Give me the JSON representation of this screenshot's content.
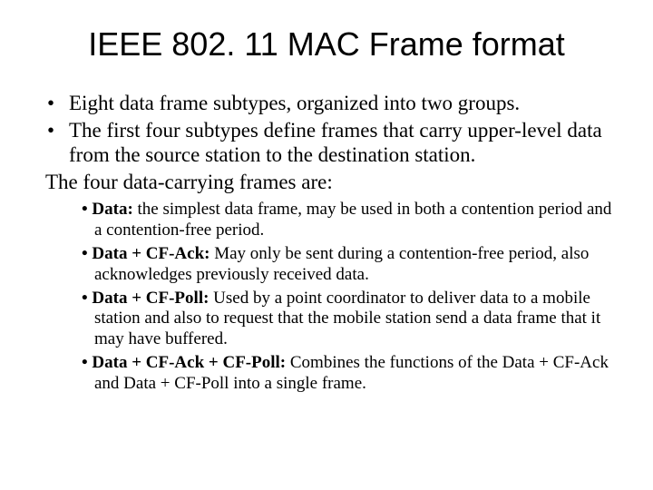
{
  "colors": {
    "background": "#ffffff",
    "text": "#000000"
  },
  "typography": {
    "title_font": "Arial",
    "body_font": "Times New Roman",
    "title_size_pt": 36,
    "outer_size_pt": 23,
    "inner_size_pt": 19
  },
  "title": "IEEE 802. 11 MAC Frame format",
  "outer": {
    "b1": "Eight data frame subtypes, organized into two groups.",
    "b2": "The first four subtypes define frames that carry upper-level data from the source station to the destination station.",
    "b3": "The four data-carrying frames are:"
  },
  "inner": {
    "i1_label": "• Data: ",
    "i1_text": "the simplest data frame, may be used in both a contention period and a contention-free period.",
    "i2_label": "• Data + CF-Ack: ",
    "i2_text": "May only be sent during a contention-free period, also acknowledges previously received data.",
    "i3_label": "• Data + CF-Poll: ",
    "i3_text": "Used by a point coordinator to deliver data to a mobile station and also to request that the mobile station send a data frame that it may have buffered.",
    "i4_label": "• Data + CF-Ack + CF-Poll: ",
    "i4_text": "Combines the functions of the Data + CF-Ack and Data + CF-Poll into a single frame."
  }
}
